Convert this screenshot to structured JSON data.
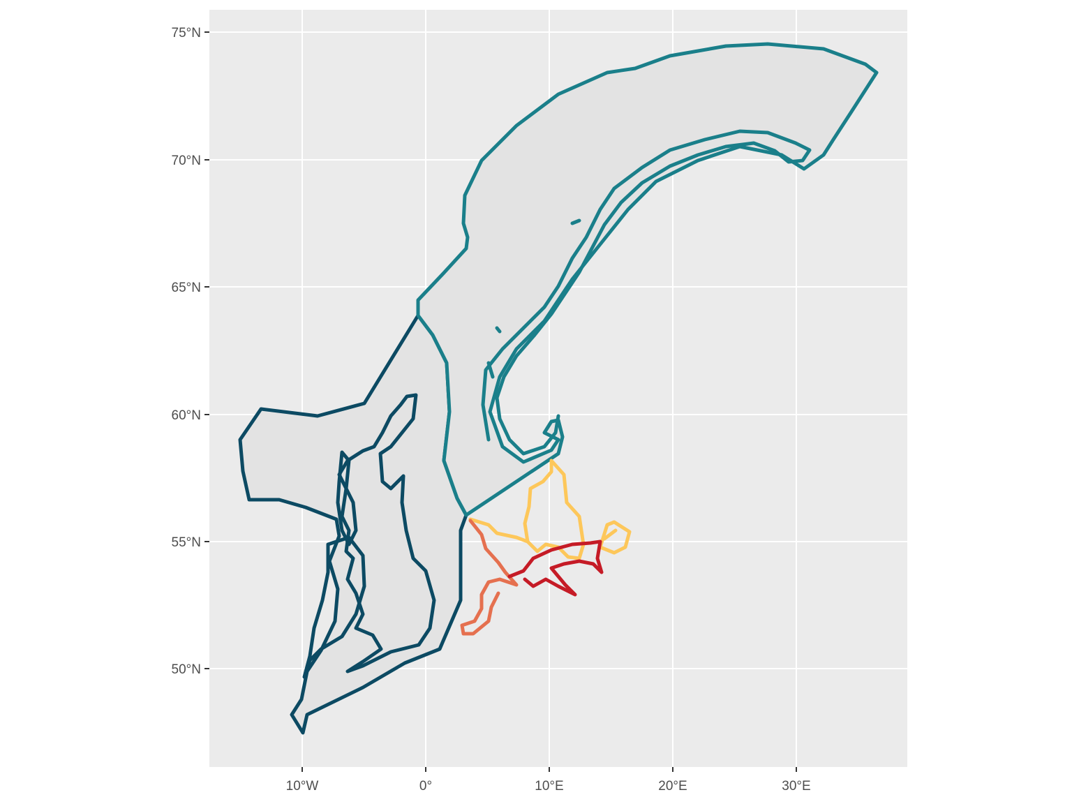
{
  "map": {
    "x_axis": {
      "ticks": [
        {
          "value": -10,
          "label": "10°W"
        },
        {
          "value": 0,
          "label": "0°"
        },
        {
          "value": 10,
          "label": "10°E"
        },
        {
          "value": 20,
          "label": "20°E"
        },
        {
          "value": 30,
          "label": "30°E"
        }
      ]
    },
    "y_axis": {
      "ticks": [
        {
          "value": 50,
          "label": "50°N"
        },
        {
          "value": 55,
          "label": "55°N"
        },
        {
          "value": 60,
          "label": "60°N"
        },
        {
          "value": 65,
          "label": "65°N"
        },
        {
          "value": 70,
          "label": "70°N"
        },
        {
          "value": 75,
          "label": "75°N"
        }
      ]
    },
    "colors": {
      "panel_background": "#ebebeb",
      "region_fill": "#e3e3e3",
      "uk_region": "#0c4a63",
      "norway_region": "#1a7f8a",
      "sweden_region": "#fdc75a",
      "germany_region": "#e5704f",
      "poland_region": "#c51b26"
    },
    "layers": [
      "uk-region",
      "norway-region",
      "sweden-coast",
      "germany-coast",
      "poland-coast"
    ]
  }
}
